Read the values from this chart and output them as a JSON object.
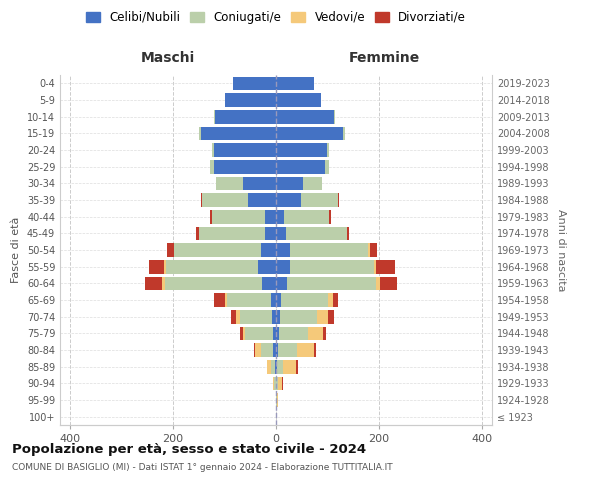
{
  "age_groups": [
    "100+",
    "95-99",
    "90-94",
    "85-89",
    "80-84",
    "75-79",
    "70-74",
    "65-69",
    "60-64",
    "55-59",
    "50-54",
    "45-49",
    "40-44",
    "35-39",
    "30-34",
    "25-29",
    "20-24",
    "15-19",
    "10-14",
    "5-9",
    "0-4"
  ],
  "birth_years": [
    "≤ 1923",
    "1924-1928",
    "1929-1933",
    "1934-1938",
    "1939-1943",
    "1944-1948",
    "1949-1953",
    "1954-1958",
    "1959-1963",
    "1964-1968",
    "1969-1973",
    "1974-1978",
    "1979-1983",
    "1984-1988",
    "1989-1993",
    "1994-1998",
    "1999-2003",
    "2004-2008",
    "2009-2013",
    "2014-2018",
    "2019-2023"
  ],
  "maschi": {
    "celibi": [
      0,
      0,
      0,
      2,
      5,
      5,
      8,
      10,
      28,
      35,
      30,
      22,
      22,
      55,
      65,
      120,
      120,
      145,
      118,
      100,
      83
    ],
    "coniugati": [
      0,
      0,
      3,
      8,
      25,
      55,
      62,
      85,
      188,
      178,
      168,
      128,
      103,
      88,
      52,
      8,
      4,
      4,
      2,
      0,
      0
    ],
    "vedovi": [
      0,
      0,
      2,
      8,
      10,
      5,
      8,
      5,
      5,
      5,
      0,
      0,
      0,
      0,
      0,
      0,
      0,
      0,
      0,
      0,
      0
    ],
    "divorziati": [
      0,
      0,
      0,
      0,
      3,
      5,
      10,
      20,
      33,
      28,
      14,
      5,
      4,
      2,
      0,
      0,
      0,
      0,
      0,
      0,
      0
    ]
  },
  "femmine": {
    "nubili": [
      0,
      0,
      0,
      2,
      3,
      5,
      8,
      10,
      22,
      28,
      28,
      20,
      16,
      48,
      52,
      95,
      100,
      130,
      112,
      88,
      73
    ],
    "coniugate": [
      0,
      2,
      4,
      12,
      38,
      58,
      72,
      92,
      172,
      162,
      150,
      118,
      88,
      72,
      38,
      8,
      4,
      4,
      2,
      0,
      0
    ],
    "vedove": [
      0,
      2,
      8,
      25,
      33,
      28,
      22,
      9,
      8,
      4,
      4,
      0,
      0,
      0,
      0,
      0,
      0,
      0,
      0,
      0,
      0
    ],
    "divorziate": [
      0,
      0,
      2,
      3,
      4,
      6,
      10,
      10,
      33,
      38,
      14,
      4,
      2,
      2,
      0,
      0,
      0,
      0,
      0,
      0,
      0
    ]
  },
  "colors": {
    "celibi_nubili": "#4472C4",
    "coniugati": "#BBCFAA",
    "vedovi": "#F5C97A",
    "divorziati": "#C0392B"
  },
  "xlim": 420,
  "title": "Popolazione per età, sesso e stato civile - 2024",
  "subtitle": "COMUNE DI BASIGLIO (MI) - Dati ISTAT 1° gennaio 2024 - Elaborazione TUTTITALIA.IT",
  "ylabel_left": "Fasce di età",
  "ylabel_right": "Anni di nascita",
  "xlabel_left": "Maschi",
  "xlabel_right": "Femmine",
  "legend_labels": [
    "Celibi/Nubili",
    "Coniugati/e",
    "Vedovi/e",
    "Divorziati/e"
  ]
}
